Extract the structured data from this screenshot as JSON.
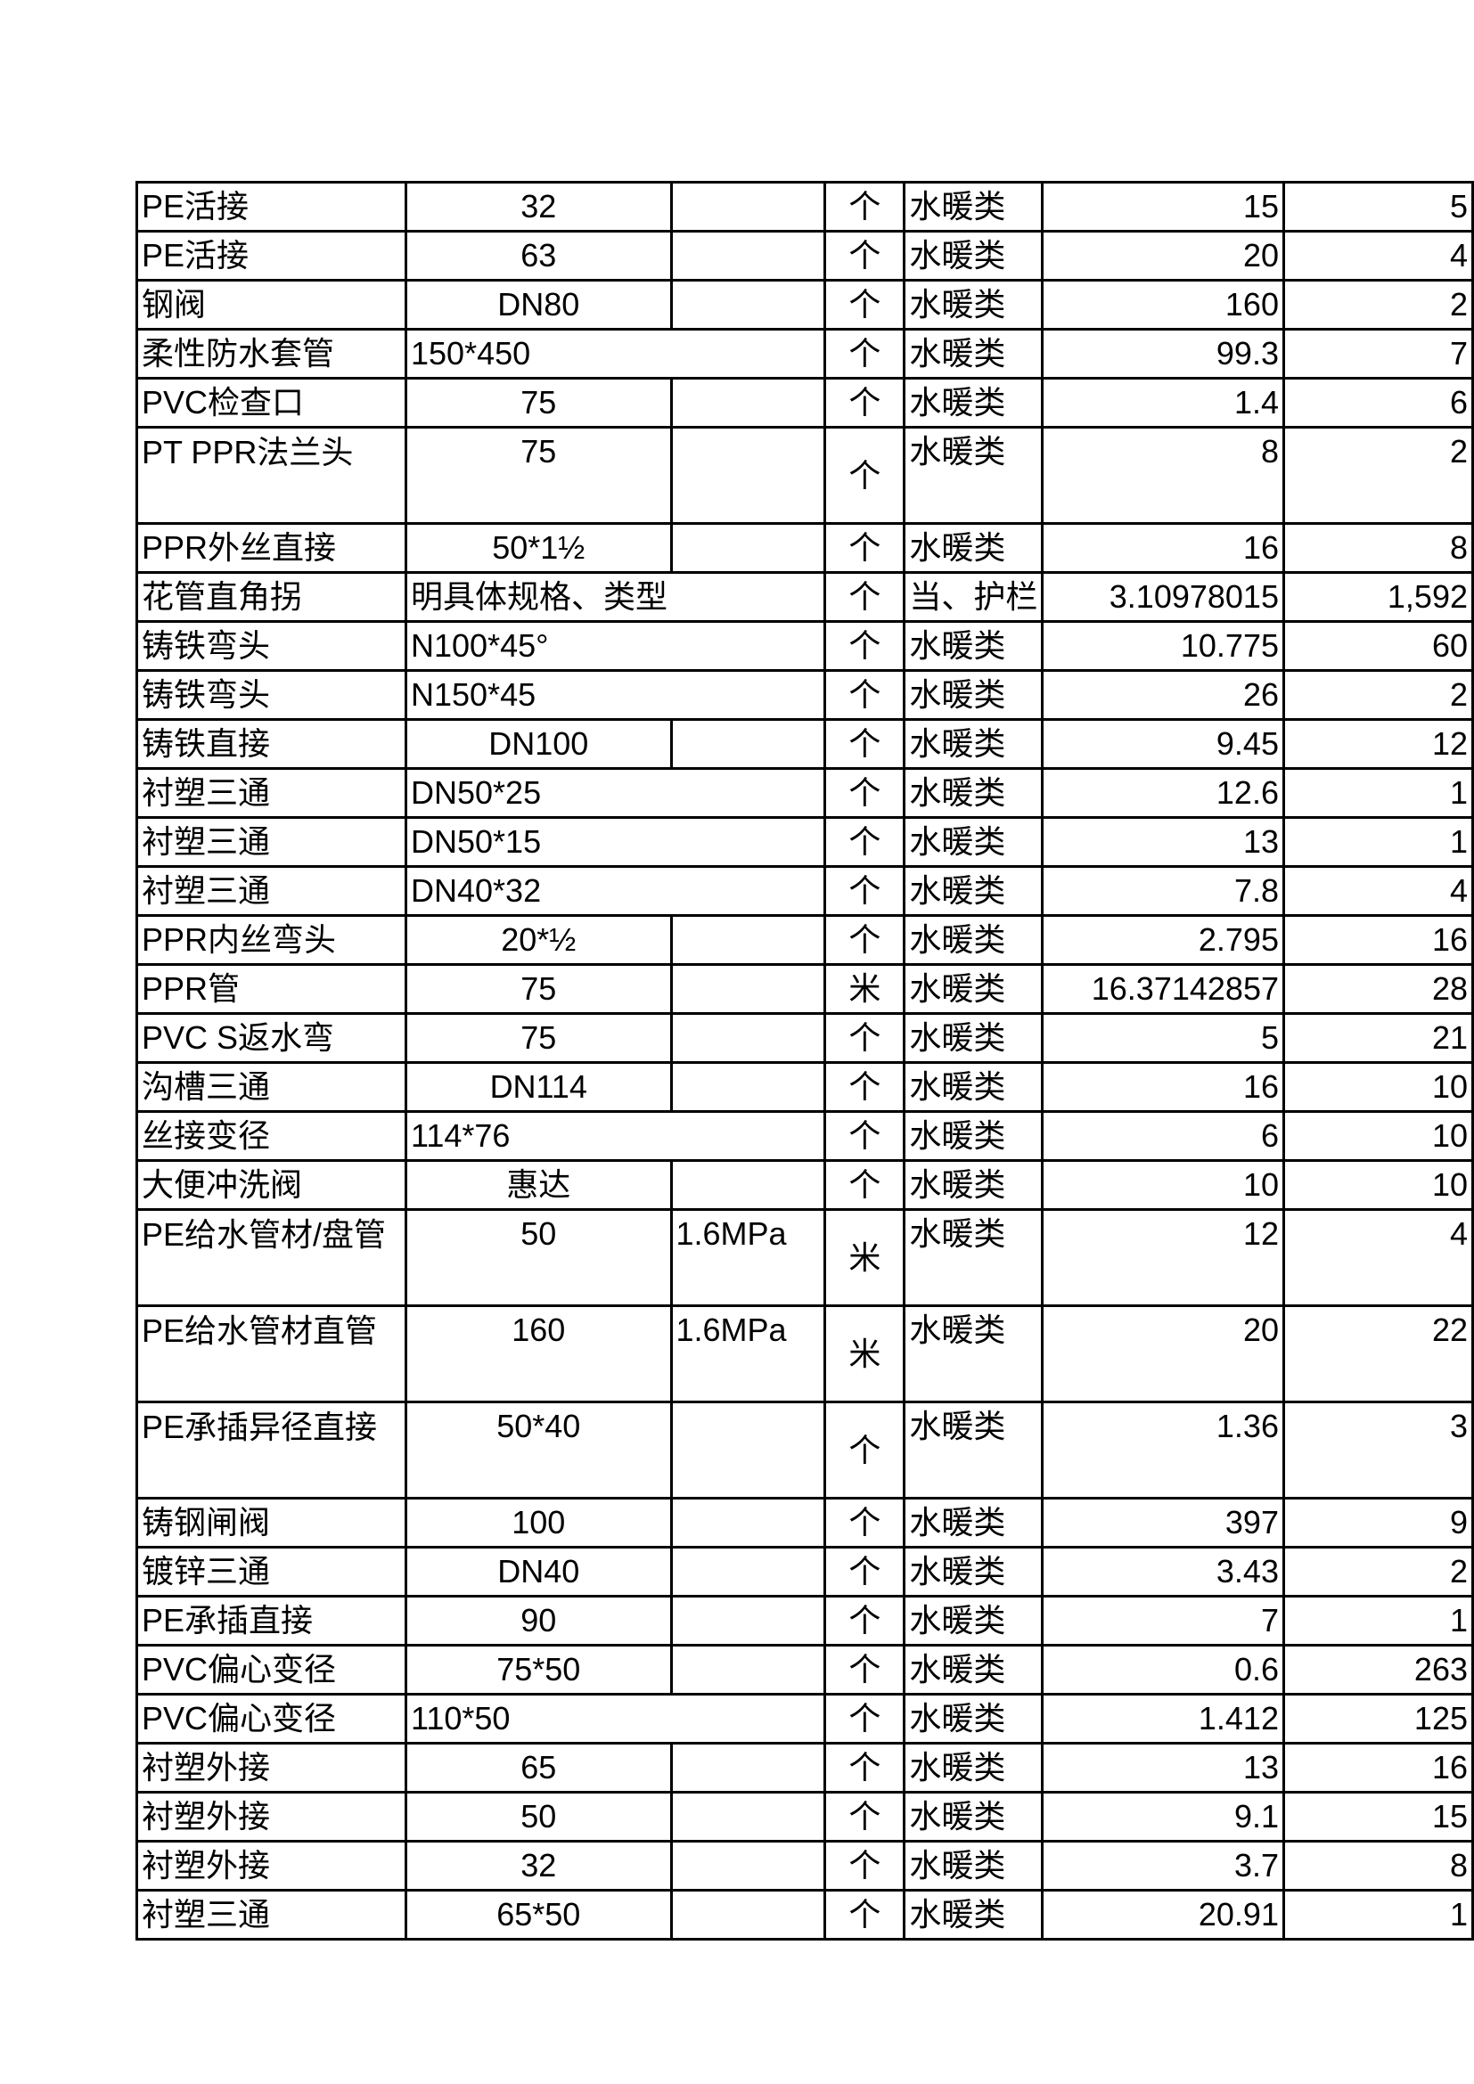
{
  "rows": [
    {
      "name": "PE活接",
      "spec": "32",
      "pressure": "",
      "unit": "个",
      "category": "水暖类",
      "price": "15",
      "qty": "5"
    },
    {
      "name": "PE活接",
      "spec": "63",
      "pressure": "",
      "unit": "个",
      "category": "水暖类",
      "price": "20",
      "qty": "4"
    },
    {
      "name": "钢阀",
      "spec": "DN80",
      "pressure": "",
      "unit": "个",
      "category": "水暖类",
      "price": "160",
      "qty": "2"
    },
    {
      "name": "柔性防水套管",
      "spec": "150*450",
      "pressure": "",
      "unit": "个",
      "category": "水暖类",
      "price": "99.3",
      "qty": "7",
      "spec_overflow": true
    },
    {
      "name": "PVC检查口",
      "spec": "75",
      "pressure": "",
      "unit": "个",
      "category": "水暖类",
      "price": "1.4",
      "qty": "6"
    },
    {
      "name": "PT PPR法兰头",
      "spec": "75",
      "pressure": "",
      "unit": "个",
      "category": "水暖类",
      "price": "8",
      "qty": "2",
      "tall": true
    },
    {
      "name": "PPR外丝直接",
      "spec": "50*1½",
      "pressure": "",
      "unit": "个",
      "category": "水暖类",
      "price": "16",
      "qty": "8"
    },
    {
      "name": "花管直角拐",
      "spec": "明具体规格、类型",
      "pressure": "",
      "unit": "个",
      "category": "当、护栏",
      "price": "3.10978015",
      "qty": "1,592",
      "spec_overflow": true
    },
    {
      "name": "铸铁弯头",
      "spec": "N100*45°",
      "pressure": "",
      "unit": "个",
      "category": "水暖类",
      "price": "10.775",
      "qty": "60",
      "spec_overflow": true
    },
    {
      "name": "铸铁弯头",
      "spec": "N150*45",
      "pressure": "",
      "unit": "个",
      "category": "水暖类",
      "price": "26",
      "qty": "2",
      "spec_overflow": true
    },
    {
      "name": "铸铁直接",
      "spec": "DN100",
      "pressure": "",
      "unit": "个",
      "category": "水暖类",
      "price": "9.45",
      "qty": "12"
    },
    {
      "name": "衬塑三通",
      "spec": "DN50*25",
      "pressure": "",
      "unit": "个",
      "category": "水暖类",
      "price": "12.6",
      "qty": "1",
      "spec_overflow": true
    },
    {
      "name": "衬塑三通",
      "spec": "DN50*15",
      "pressure": "",
      "unit": "个",
      "category": "水暖类",
      "price": "13",
      "qty": "1",
      "spec_overflow": true
    },
    {
      "name": "衬塑三通",
      "spec": "DN40*32",
      "pressure": "",
      "unit": "个",
      "category": "水暖类",
      "price": "7.8",
      "qty": "4",
      "spec_overflow": true
    },
    {
      "name": "PPR内丝弯头",
      "spec": "20*½",
      "pressure": "",
      "unit": "个",
      "category": "水暖类",
      "price": "2.795",
      "qty": "16"
    },
    {
      "name": "PPR管",
      "spec": "75",
      "pressure": "",
      "unit": "米",
      "category": "水暖类",
      "price": "16.37142857",
      "qty": "28"
    },
    {
      "name": "PVC S返水弯",
      "spec": "75",
      "pressure": "",
      "unit": "个",
      "category": "水暖类",
      "price": "5",
      "qty": "21"
    },
    {
      "name": "沟槽三通",
      "spec": "DN114",
      "pressure": "",
      "unit": "个",
      "category": "水暖类",
      "price": "16",
      "qty": "10"
    },
    {
      "name": "丝接变径",
      "spec": "114*76",
      "pressure": "",
      "unit": "个",
      "category": "水暖类",
      "price": "6",
      "qty": "10",
      "spec_overflow": true
    },
    {
      "name": "大便冲洗阀",
      "spec": "惠达",
      "pressure": "",
      "unit": "个",
      "category": "水暖类",
      "price": "10",
      "qty": "10"
    },
    {
      "name": "PE给水管材/盘管",
      "spec": "50",
      "pressure": "1.6MPa",
      "unit": "米",
      "category": "水暖类",
      "price": "12",
      "qty": "4",
      "tall": true
    },
    {
      "name": "PE给水管材直管",
      "spec": "160",
      "pressure": "1.6MPa",
      "unit": "米",
      "category": "水暖类",
      "price": "20",
      "qty": "22",
      "tall": true
    },
    {
      "name": "PE承插异径直接",
      "spec": "50*40",
      "pressure": "",
      "unit": "个",
      "category": "水暖类",
      "price": "1.36",
      "qty": "3",
      "tall": true
    },
    {
      "name": "铸钢闸阀",
      "spec": "100",
      "pressure": "",
      "unit": "个",
      "category": "水暖类",
      "price": "397",
      "qty": "9"
    },
    {
      "name": "镀锌三通",
      "spec": "DN40",
      "pressure": "",
      "unit": "个",
      "category": "水暖类",
      "price": "3.43",
      "qty": "2"
    },
    {
      "name": "PE承插直接",
      "spec": "90",
      "pressure": "",
      "unit": "个",
      "category": "水暖类",
      "price": "7",
      "qty": "1"
    },
    {
      "name": "PVC偏心变径",
      "spec": "75*50",
      "pressure": "",
      "unit": "个",
      "category": "水暖类",
      "price": "0.6",
      "qty": "263"
    },
    {
      "name": "PVC偏心变径",
      "spec": "110*50",
      "pressure": "",
      "unit": "个",
      "category": "水暖类",
      "price": "1.412",
      "qty": "125",
      "spec_overflow": true
    },
    {
      "name": "衬塑外接",
      "spec": "65",
      "pressure": "",
      "unit": "个",
      "category": "水暖类",
      "price": "13",
      "qty": "16"
    },
    {
      "name": "衬塑外接",
      "spec": "50",
      "pressure": "",
      "unit": "个",
      "category": "水暖类",
      "price": "9.1",
      "qty": "15"
    },
    {
      "name": "衬塑外接",
      "spec": "32",
      "pressure": "",
      "unit": "个",
      "category": "水暖类",
      "price": "3.7",
      "qty": "8"
    },
    {
      "name": "衬塑三通",
      "spec": "65*50",
      "pressure": "",
      "unit": "个",
      "category": "水暖类",
      "price": "20.91",
      "qty": "1"
    }
  ]
}
